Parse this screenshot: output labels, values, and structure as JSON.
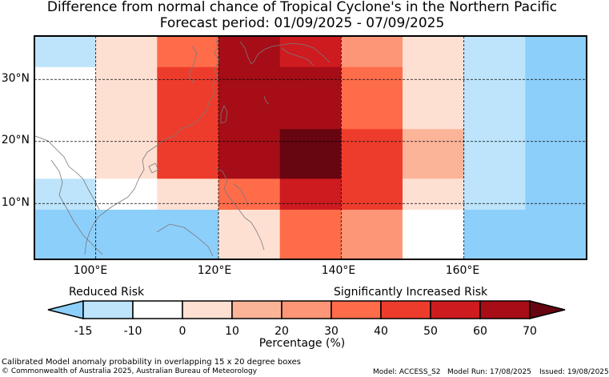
{
  "title": {
    "line1": "Difference from normal chance of Tropical Cyclone's in the Northern Pacific",
    "line2": "Forecast period: 01/09/2025 - 07/09/2025"
  },
  "map": {
    "lon_range": [
      90,
      180
    ],
    "lat_range": [
      1,
      37
    ],
    "grid_lons": [
      100,
      120,
      140,
      160
    ],
    "grid_lats": [
      10,
      20,
      30
    ],
    "lon_labels": [
      "100°E",
      "120°E",
      "140°E",
      "160°E"
    ],
    "lat_labels": [
      "10°N",
      "20°N",
      "30°N"
    ],
    "cells": [
      {
        "lon": [
          90,
          100
        ],
        "lat": [
          32,
          37
        ],
        "color": "#bde4fb"
      },
      {
        "lon": [
          100,
          110
        ],
        "lat": [
          32,
          37
        ],
        "color": "#fee0d3"
      },
      {
        "lon": [
          110,
          120
        ],
        "lat": [
          32,
          37
        ],
        "color": "#ff6c4a"
      },
      {
        "lon": [
          120,
          130
        ],
        "lat": [
          32,
          37
        ],
        "color": "#a60d17"
      },
      {
        "lon": [
          130,
          140
        ],
        "lat": [
          32,
          37
        ],
        "color": "#cd1b20"
      },
      {
        "lon": [
          140,
          150
        ],
        "lat": [
          32,
          37
        ],
        "color": "#fd9677"
      },
      {
        "lon": [
          150,
          160
        ],
        "lat": [
          32,
          37
        ],
        "color": "#fee0d3"
      },
      {
        "lon": [
          160,
          170
        ],
        "lat": [
          32,
          37
        ],
        "color": "#bde4fb"
      },
      {
        "lon": [
          170,
          180
        ],
        "lat": [
          32,
          37
        ],
        "color": "#8dcffb"
      },
      {
        "lon": [
          90,
          100
        ],
        "lat": [
          30,
          32
        ],
        "color": "#ffffff"
      },
      {
        "lon": [
          100,
          110
        ],
        "lat": [
          30,
          32
        ],
        "color": "#fee0d3"
      },
      {
        "lon": [
          110,
          120
        ],
        "lat": [
          30,
          32
        ],
        "color": "#ee3c2c"
      },
      {
        "lon": [
          120,
          130
        ],
        "lat": [
          30,
          32
        ],
        "color": "#a60d17"
      },
      {
        "lon": [
          130,
          140
        ],
        "lat": [
          30,
          32
        ],
        "color": "#a60d17"
      },
      {
        "lon": [
          140,
          150
        ],
        "lat": [
          30,
          32
        ],
        "color": "#ff6c4a"
      },
      {
        "lon": [
          150,
          160
        ],
        "lat": [
          30,
          32
        ],
        "color": "#fee0d3"
      },
      {
        "lon": [
          160,
          170
        ],
        "lat": [
          30,
          32
        ],
        "color": "#bde4fb"
      },
      {
        "lon": [
          170,
          180
        ],
        "lat": [
          30,
          32
        ],
        "color": "#8dcffb"
      },
      {
        "lon": [
          90,
          100
        ],
        "lat": [
          22,
          30
        ],
        "color": "#ffffff"
      },
      {
        "lon": [
          100,
          110
        ],
        "lat": [
          22,
          30
        ],
        "color": "#fee0d3"
      },
      {
        "lon": [
          110,
          120
        ],
        "lat": [
          22,
          30
        ],
        "color": "#ee3c2c"
      },
      {
        "lon": [
          120,
          130
        ],
        "lat": [
          22,
          30
        ],
        "color": "#a60d17"
      },
      {
        "lon": [
          130,
          140
        ],
        "lat": [
          22,
          30
        ],
        "color": "#a60d17"
      },
      {
        "lon": [
          140,
          150
        ],
        "lat": [
          22,
          30
        ],
        "color": "#ff6c4a"
      },
      {
        "lon": [
          150,
          160
        ],
        "lat": [
          22,
          30
        ],
        "color": "#fee0d3"
      },
      {
        "lon": [
          160,
          170
        ],
        "lat": [
          22,
          30
        ],
        "color": "#bde4fb"
      },
      {
        "lon": [
          170,
          180
        ],
        "lat": [
          22,
          30
        ],
        "color": "#8dcffb"
      },
      {
        "lon": [
          90,
          100
        ],
        "lat": [
          14,
          22
        ],
        "color": "#ffffff"
      },
      {
        "lon": [
          100,
          110
        ],
        "lat": [
          14,
          22
        ],
        "color": "#fee0d3"
      },
      {
        "lon": [
          110,
          120
        ],
        "lat": [
          14,
          22
        ],
        "color": "#ee3c2c"
      },
      {
        "lon": [
          120,
          130
        ],
        "lat": [
          14,
          22
        ],
        "color": "#a60d17"
      },
      {
        "lon": [
          130,
          140
        ],
        "lat": [
          14,
          22
        ],
        "color": "#670510"
      },
      {
        "lon": [
          140,
          150
        ],
        "lat": [
          14,
          22
        ],
        "color": "#ee3c2c"
      },
      {
        "lon": [
          150,
          160
        ],
        "lat": [
          14,
          22
        ],
        "color": "#fcb499"
      },
      {
        "lon": [
          160,
          170
        ],
        "lat": [
          14,
          22
        ],
        "color": "#bde4fb"
      },
      {
        "lon": [
          170,
          180
        ],
        "lat": [
          14,
          22
        ],
        "color": "#8dcffb"
      },
      {
        "lon": [
          90,
          100
        ],
        "lat": [
          9,
          14
        ],
        "color": "#bde4fb"
      },
      {
        "lon": [
          100,
          110
        ],
        "lat": [
          9,
          14
        ],
        "color": "#ffffff"
      },
      {
        "lon": [
          110,
          120
        ],
        "lat": [
          9,
          14
        ],
        "color": "#fee0d3"
      },
      {
        "lon": [
          120,
          130
        ],
        "lat": [
          9,
          14
        ],
        "color": "#ff6c4a"
      },
      {
        "lon": [
          130,
          140
        ],
        "lat": [
          9,
          14
        ],
        "color": "#cd1b20"
      },
      {
        "lon": [
          140,
          150
        ],
        "lat": [
          9,
          14
        ],
        "color": "#ee3c2c"
      },
      {
        "lon": [
          150,
          160
        ],
        "lat": [
          9,
          14
        ],
        "color": "#fee0d3"
      },
      {
        "lon": [
          160,
          170
        ],
        "lat": [
          9,
          14
        ],
        "color": "#bde4fb"
      },
      {
        "lon": [
          170,
          180
        ],
        "lat": [
          9,
          14
        ],
        "color": "#8dcffb"
      },
      {
        "lon": [
          90,
          100
        ],
        "lat": [
          1,
          9
        ],
        "color": "#8dcffb"
      },
      {
        "lon": [
          100,
          110
        ],
        "lat": [
          1,
          9
        ],
        "color": "#8dcffb"
      },
      {
        "lon": [
          110,
          120
        ],
        "lat": [
          1,
          9
        ],
        "color": "#8dcffb"
      },
      {
        "lon": [
          120,
          130
        ],
        "lat": [
          1,
          9
        ],
        "color": "#fee0d3"
      },
      {
        "lon": [
          130,
          140
        ],
        "lat": [
          1,
          9
        ],
        "color": "#ff6c4a"
      },
      {
        "lon": [
          140,
          150
        ],
        "lat": [
          1,
          9
        ],
        "color": "#fd9677"
      },
      {
        "lon": [
          150,
          160
        ],
        "lat": [
          1,
          9
        ],
        "color": "#ffffff"
      },
      {
        "lon": [
          160,
          170
        ],
        "lat": [
          1,
          9
        ],
        "color": "#8dcffb"
      },
      {
        "lon": [
          170,
          180
        ],
        "lat": [
          1,
          9
        ],
        "color": "#8dcffb"
      }
    ]
  },
  "legend": {
    "left_label": "Reduced Risk",
    "right_label": "Significantly Increased Risk",
    "title": "Percentage (%)",
    "ticks": [
      "-15",
      "-10",
      "0",
      "10",
      "20",
      "30",
      "40",
      "50",
      "60",
      "70"
    ],
    "colors": {
      "under": "#8dcffb",
      "bins": [
        "#bde4fb",
        "#ffffff",
        "#fee0d3",
        "#fcb499",
        "#fd9677",
        "#ff6c4a",
        "#ee3c2c",
        "#cd1b20",
        "#a60d17"
      ],
      "over": "#670510"
    }
  },
  "footer": {
    "description": "Calibrated Model anomaly probability in overlapping 15 x 20 degree boxes",
    "copyright": "© Commonwealth of Australia 2025, Australian Bureau of Meteorology",
    "model": "Model: ACCESS_S2",
    "model_run": "Model Run: 17/08/2025",
    "issued": "Issued: 19/08/2025"
  }
}
